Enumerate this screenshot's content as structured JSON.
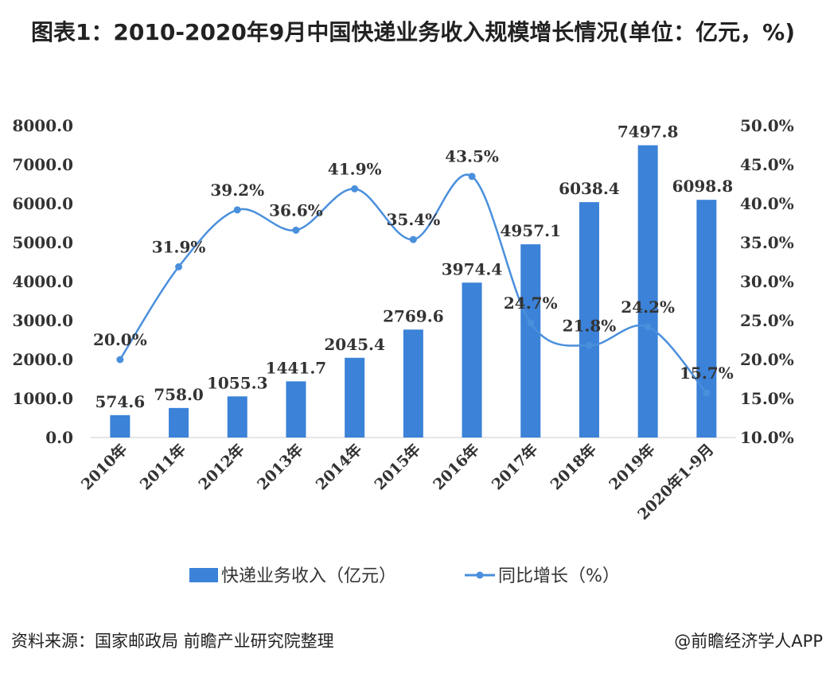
{
  "chart_data": {
    "type": "bar+line",
    "title": "图表1：2010-2020年9月中国快递业务收入规模增长情况(单位：亿元，%)",
    "categories": [
      "2010年",
      "2011年",
      "2012年",
      "2013年",
      "2014年",
      "2015年",
      "2016年",
      "2017年",
      "2018年",
      "2019年",
      "2020年1-9月"
    ],
    "series": [
      {
        "name": "快递业务收入（亿元）",
        "type": "bar",
        "axis": "left",
        "color": "#3b82d8",
        "values": [
          574.6,
          758.0,
          1055.3,
          1441.7,
          2045.4,
          2769.6,
          3974.4,
          4957.1,
          6038.4,
          7497.8,
          6098.8
        ],
        "labels": [
          "574.6",
          "758.0",
          "1055.3",
          "1441.7",
          "2045.4",
          "2769.6",
          "3974.4",
          "4957.1",
          "6038.4",
          "7497.8",
          "6098.8"
        ]
      },
      {
        "name": "同比增长（%）",
        "type": "line",
        "smooth": true,
        "axis": "right",
        "color": "#4a8fdc",
        "values": [
          20.0,
          31.9,
          39.2,
          36.6,
          41.9,
          35.4,
          43.5,
          24.7,
          21.8,
          24.2,
          15.7
        ],
        "labels": [
          "20.0%",
          "31.9%",
          "39.2%",
          "36.6%",
          "41.9%",
          "35.4%",
          "43.5%",
          "24.7%",
          "21.8%",
          "24.2%",
          "15.7%"
        ]
      }
    ],
    "y_left": {
      "range": [
        0,
        8000
      ],
      "ticks": [
        "0.0",
        "1000.0",
        "2000.0",
        "3000.0",
        "4000.0",
        "5000.0",
        "6000.0",
        "7000.0",
        "8000.0"
      ]
    },
    "y_right": {
      "range": [
        10,
        50
      ],
      "ticks": [
        "10.0%",
        "15.0%",
        "20.0%",
        "25.0%",
        "30.0%",
        "35.0%",
        "40.0%",
        "45.0%",
        "50.0%"
      ]
    },
    "grid": false,
    "legend": "bottom"
  },
  "source": "资料来源：国家邮政局 前瞻产业研究院整理",
  "credit": "@前瞻经济学人APP"
}
